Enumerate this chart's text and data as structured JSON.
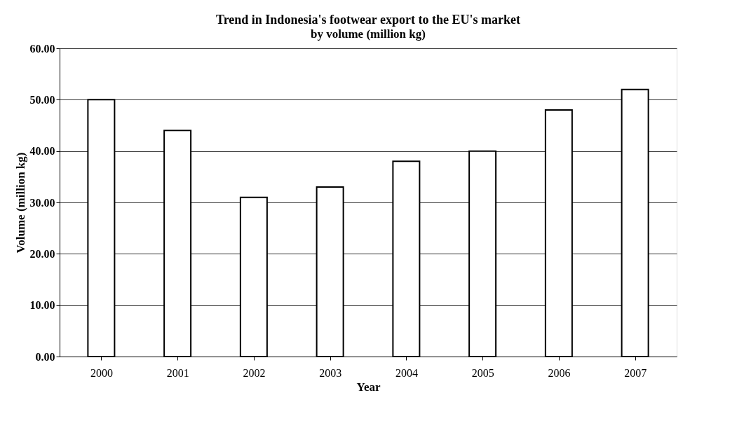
{
  "chart_data": {
    "type": "bar",
    "title": "Trend in Indonesia's footwear export to the EU's market",
    "subtitle": "by volume (million kg)",
    "xlabel": "Year",
    "ylabel": "Volume (million kg)",
    "categories": [
      "2000",
      "2001",
      "2002",
      "2003",
      "2004",
      "2005",
      "2006",
      "2007"
    ],
    "values": [
      50,
      44,
      31,
      33,
      38,
      40,
      48,
      52
    ],
    "color": "#ffffff",
    "ylim": [
      0,
      60
    ],
    "yticks": [
      {
        "value": 0,
        "label": "0.00"
      },
      {
        "value": 10,
        "label": "10.00"
      },
      {
        "value": 20,
        "label": "20.00"
      },
      {
        "value": 30,
        "label": "30.00"
      },
      {
        "value": 40,
        "label": "40.00"
      },
      {
        "value": 50,
        "label": "50.00"
      },
      {
        "value": 60,
        "label": "60.00"
      }
    ],
    "grid": "y"
  }
}
